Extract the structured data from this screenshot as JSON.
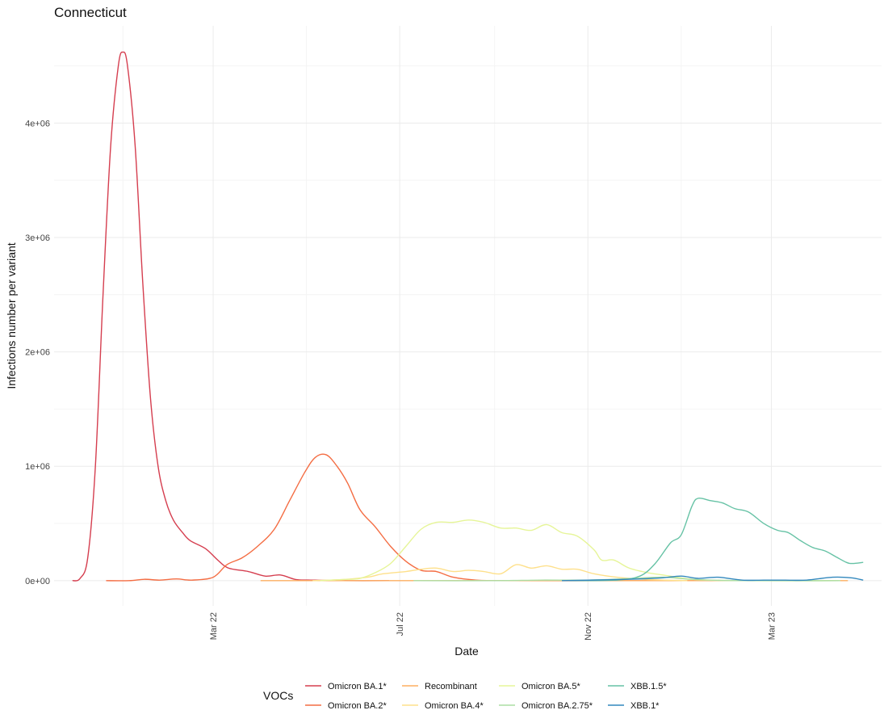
{
  "chart_data": {
    "type": "line",
    "title": "Connecticut",
    "xlabel": "Date",
    "ylabel": "Infections number per variant",
    "xlim": [
      "2021-11-17",
      "2023-05-12"
    ],
    "ylim": [
      -220000,
      4850000
    ],
    "x_ticks": [
      {
        "date": "2022-03-01",
        "label": "Mar 22"
      },
      {
        "date": "2022-07-01",
        "label": "Jul 22"
      },
      {
        "date": "2022-11-01",
        "label": "Nov 22"
      },
      {
        "date": "2023-03-01",
        "label": "Mar 23"
      }
    ],
    "x_minor_ticks": [
      "2022-01-01",
      "2022-05-01",
      "2022-09-01",
      "2023-01-01"
    ],
    "y_ticks": [
      {
        "value": 0,
        "label": "0e+00"
      },
      {
        "value": 1000000,
        "label": "1e+06"
      },
      {
        "value": 2000000,
        "label": "2e+06"
      },
      {
        "value": 3000000,
        "label": "3e+06"
      },
      {
        "value": 4000000,
        "label": "4e+06"
      }
    ],
    "y_minor_ticks": [
      500000,
      1500000,
      2500000,
      3500000,
      4500000
    ],
    "grid": true,
    "legend": {
      "title": "VOCs",
      "position": "bottom"
    },
    "series": [
      {
        "name": "Omicron BA.1*",
        "color": "#d53e4f",
        "points": [
          [
            "2021-11-29",
            0
          ],
          [
            "2021-12-04",
            20000
          ],
          [
            "2021-12-09",
            200000
          ],
          [
            "2021-12-14",
            1000000
          ],
          [
            "2021-12-19",
            2500000
          ],
          [
            "2021-12-24",
            3800000
          ],
          [
            "2021-12-29",
            4500000
          ],
          [
            "2022-01-01",
            4620000
          ],
          [
            "2022-01-04",
            4500000
          ],
          [
            "2022-01-09",
            3800000
          ],
          [
            "2022-01-14",
            2600000
          ],
          [
            "2022-01-19",
            1600000
          ],
          [
            "2022-01-24",
            1000000
          ],
          [
            "2022-01-29",
            700000
          ],
          [
            "2022-02-03",
            530000
          ],
          [
            "2022-02-09",
            420000
          ],
          [
            "2022-02-14",
            350000
          ],
          [
            "2022-02-24",
            280000
          ],
          [
            "2022-03-04",
            180000
          ],
          [
            "2022-03-11",
            110000
          ],
          [
            "2022-03-24",
            80000
          ],
          [
            "2022-04-04",
            40000
          ],
          [
            "2022-04-14",
            50000
          ],
          [
            "2022-04-24",
            10000
          ],
          [
            "2022-05-04",
            5000
          ],
          [
            "2022-05-24",
            0
          ],
          [
            "2022-06-24",
            0
          ]
        ]
      },
      {
        "name": "Omicron BA.2*",
        "color": "#f46d43",
        "points": [
          [
            "2021-12-21",
            0
          ],
          [
            "2022-01-05",
            0
          ],
          [
            "2022-01-15",
            12000
          ],
          [
            "2022-01-25",
            5000
          ],
          [
            "2022-02-05",
            15000
          ],
          [
            "2022-02-15",
            5000
          ],
          [
            "2022-03-01",
            30000
          ],
          [
            "2022-03-10",
            140000
          ],
          [
            "2022-03-20",
            200000
          ],
          [
            "2022-03-30",
            300000
          ],
          [
            "2022-04-10",
            450000
          ],
          [
            "2022-04-20",
            700000
          ],
          [
            "2022-04-30",
            950000
          ],
          [
            "2022-05-07",
            1080000
          ],
          [
            "2022-05-14",
            1100000
          ],
          [
            "2022-05-21",
            1000000
          ],
          [
            "2022-05-28",
            850000
          ],
          [
            "2022-06-05",
            620000
          ],
          [
            "2022-06-15",
            470000
          ],
          [
            "2022-06-25",
            300000
          ],
          [
            "2022-07-05",
            170000
          ],
          [
            "2022-07-15",
            90000
          ],
          [
            "2022-07-25",
            80000
          ],
          [
            "2022-08-05",
            30000
          ],
          [
            "2022-08-20",
            5000
          ],
          [
            "2022-09-10",
            0
          ],
          [
            "2022-12-01",
            0
          ],
          [
            "2023-01-20",
            0
          ]
        ]
      },
      {
        "name": "Recombinant",
        "color": "#fdae61",
        "points": [
          [
            "2022-04-01",
            0
          ],
          [
            "2023-04-20",
            0
          ]
        ]
      },
      {
        "name": "Omicron BA.4*",
        "color": "#fee08b",
        "points": [
          [
            "2022-05-05",
            0
          ],
          [
            "2022-05-25",
            10000
          ],
          [
            "2022-06-10",
            30000
          ],
          [
            "2022-06-20",
            60000
          ],
          [
            "2022-07-05",
            80000
          ],
          [
            "2022-07-15",
            100000
          ],
          [
            "2022-07-25",
            110000
          ],
          [
            "2022-08-05",
            80000
          ],
          [
            "2022-08-15",
            90000
          ],
          [
            "2022-08-25",
            80000
          ],
          [
            "2022-09-05",
            60000
          ],
          [
            "2022-09-15",
            140000
          ],
          [
            "2022-09-25",
            110000
          ],
          [
            "2022-10-05",
            130000
          ],
          [
            "2022-10-15",
            100000
          ],
          [
            "2022-10-25",
            100000
          ],
          [
            "2022-11-05",
            60000
          ],
          [
            "2022-11-20",
            30000
          ],
          [
            "2022-12-10",
            10000
          ],
          [
            "2023-01-05",
            0
          ]
        ]
      },
      {
        "name": "Omicron BA.5*",
        "color": "#e6f598",
        "points": [
          [
            "2022-05-10",
            0
          ],
          [
            "2022-05-25",
            10000
          ],
          [
            "2022-06-05",
            20000
          ],
          [
            "2022-06-15",
            70000
          ],
          [
            "2022-06-25",
            150000
          ],
          [
            "2022-07-05",
            300000
          ],
          [
            "2022-07-15",
            450000
          ],
          [
            "2022-07-25",
            510000
          ],
          [
            "2022-08-05",
            510000
          ],
          [
            "2022-08-15",
            530000
          ],
          [
            "2022-08-25",
            510000
          ],
          [
            "2022-09-05",
            460000
          ],
          [
            "2022-09-15",
            460000
          ],
          [
            "2022-09-25",
            440000
          ],
          [
            "2022-10-05",
            490000
          ],
          [
            "2022-10-15",
            420000
          ],
          [
            "2022-10-25",
            390000
          ],
          [
            "2022-11-05",
            270000
          ],
          [
            "2022-11-10",
            180000
          ],
          [
            "2022-11-18",
            180000
          ],
          [
            "2022-11-28",
            110000
          ],
          [
            "2022-12-10",
            70000
          ],
          [
            "2022-12-20",
            50000
          ],
          [
            "2023-01-10",
            10000
          ],
          [
            "2023-02-10",
            0
          ],
          [
            "2023-04-15",
            0
          ]
        ]
      },
      {
        "name": "Omicron BA.2.75*",
        "color": "#abdda4",
        "points": [
          [
            "2022-07-10",
            0
          ],
          [
            "2022-09-01",
            0
          ],
          [
            "2022-10-01",
            5000
          ],
          [
            "2022-11-01",
            5000
          ],
          [
            "2022-12-01",
            20000
          ],
          [
            "2022-12-20",
            30000
          ],
          [
            "2023-01-10",
            10000
          ],
          [
            "2023-02-10",
            0
          ],
          [
            "2023-04-15",
            0
          ]
        ]
      },
      {
        "name": "XBB.1.5*",
        "color": "#66c2a5",
        "points": [
          [
            "2022-10-20",
            0
          ],
          [
            "2022-11-20",
            5000
          ],
          [
            "2022-12-05",
            40000
          ],
          [
            "2022-12-15",
            150000
          ],
          [
            "2022-12-25",
            330000
          ],
          [
            "2023-01-01",
            400000
          ],
          [
            "2023-01-08",
            650000
          ],
          [
            "2023-01-12",
            720000
          ],
          [
            "2023-01-20",
            700000
          ],
          [
            "2023-01-28",
            680000
          ],
          [
            "2023-02-05",
            630000
          ],
          [
            "2023-02-14",
            600000
          ],
          [
            "2023-02-24",
            500000
          ],
          [
            "2023-03-05",
            440000
          ],
          [
            "2023-03-12",
            420000
          ],
          [
            "2023-03-20",
            350000
          ],
          [
            "2023-03-28",
            290000
          ],
          [
            "2023-04-05",
            260000
          ],
          [
            "2023-04-12",
            210000
          ],
          [
            "2023-04-19",
            160000
          ],
          [
            "2023-04-23",
            150000
          ],
          [
            "2023-04-30",
            160000
          ]
        ]
      },
      {
        "name": "XBB.1*",
        "color": "#3288bd",
        "points": [
          [
            "2022-10-15",
            0
          ],
          [
            "2022-11-15",
            8000
          ],
          [
            "2022-12-05",
            15000
          ],
          [
            "2022-12-20",
            25000
          ],
          [
            "2023-01-01",
            40000
          ],
          [
            "2023-01-12",
            20000
          ],
          [
            "2023-01-25",
            30000
          ],
          [
            "2023-02-10",
            5000
          ],
          [
            "2023-02-24",
            5000
          ],
          [
            "2023-03-10",
            5000
          ],
          [
            "2023-03-24",
            5000
          ],
          [
            "2023-04-10",
            30000
          ],
          [
            "2023-04-22",
            25000
          ],
          [
            "2023-04-30",
            5000
          ]
        ]
      }
    ]
  }
}
